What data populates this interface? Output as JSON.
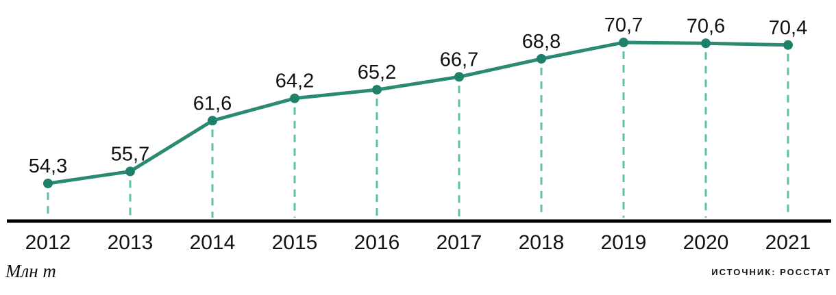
{
  "chart_data": {
    "type": "line",
    "categories": [
      "2012",
      "2013",
      "2014",
      "2015",
      "2016",
      "2017",
      "2018",
      "2019",
      "2020",
      "2021"
    ],
    "values": [
      54.3,
      55.7,
      61.6,
      64.2,
      65.2,
      66.7,
      68.8,
      70.7,
      70.6,
      70.4
    ],
    "value_labels": [
      "54,3",
      "55,7",
      "61,6",
      "64,2",
      "65,2",
      "66,7",
      "68,8",
      "70,7",
      "70,6",
      "70,4"
    ],
    "title": "",
    "xlabel": "",
    "ylabel": "Млн т",
    "source": "ИСТОЧНИК: РОССТАТ",
    "ylim": [
      50,
      74
    ],
    "grid": false,
    "legend": "none",
    "colors": {
      "line": "#2b8a72",
      "point": "#1f816c",
      "dashed_guide": "#5fbfad",
      "axis": "#000000",
      "label_text": "#111111"
    }
  }
}
